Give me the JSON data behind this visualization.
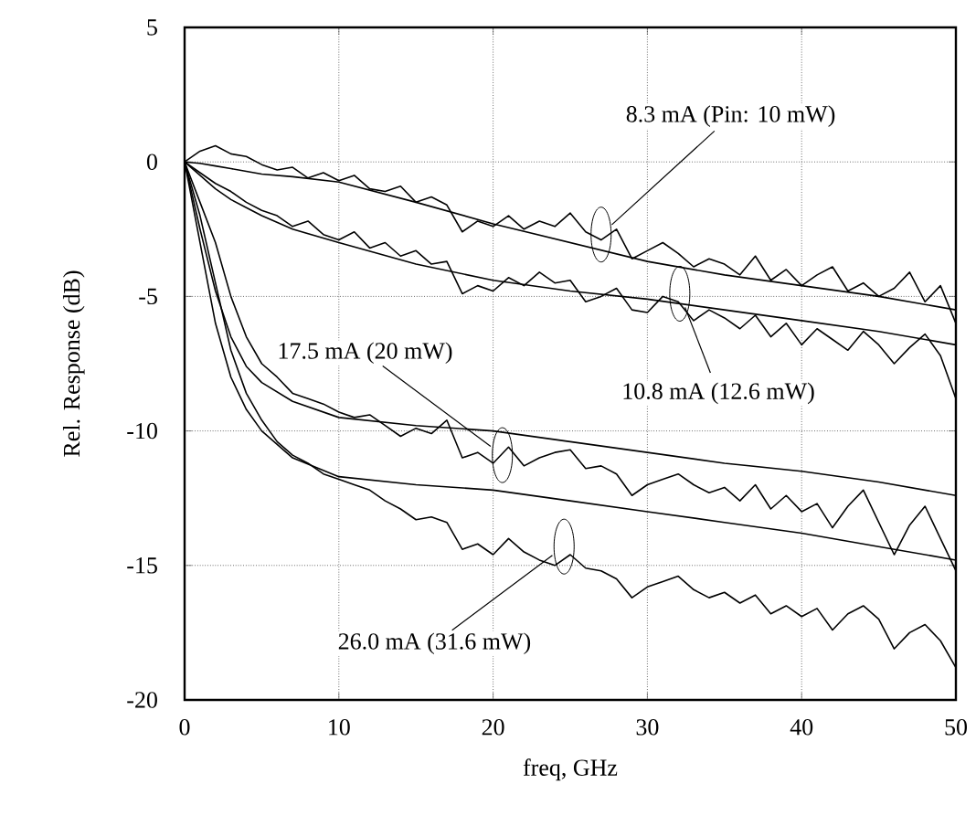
{
  "chart_data": {
    "type": "line",
    "xlabel": "freq, GHz",
    "ylabel": "Rel. Response (dB)",
    "xlim": [
      0,
      50
    ],
    "ylim": [
      -20,
      5
    ],
    "xticks": [
      0,
      10,
      20,
      30,
      40,
      50
    ],
    "yticks": [
      -20,
      -15,
      -10,
      -5,
      0,
      5
    ],
    "grid": true,
    "marker": "none",
    "line_style": "solid",
    "series": [
      {
        "color": "#000000",
        "x": [
          0,
          1,
          2,
          3,
          4,
          5,
          6,
          7,
          8,
          9,
          10,
          11,
          12,
          13,
          14,
          15,
          16,
          17,
          18,
          19,
          20,
          21,
          22,
          23,
          24,
          25,
          26,
          27,
          28,
          29,
          30,
          31,
          32,
          33,
          34,
          35,
          36,
          37,
          38,
          39,
          40,
          41,
          42,
          43,
          44,
          45,
          46,
          47,
          48,
          49,
          50
        ],
        "values": [
          0,
          0.4,
          0.6,
          0.3,
          0.2,
          -0.1,
          -0.3,
          -0.2,
          -0.6,
          -0.4,
          -0.7,
          -0.5,
          -1.0,
          -1.1,
          -0.9,
          -1.5,
          -1.3,
          -1.6,
          -2.6,
          -2.2,
          -2.4,
          -2.0,
          -2.5,
          -2.2,
          -2.4,
          -1.9,
          -2.6,
          -2.9,
          -2.5,
          -3.6,
          -3.3,
          -3.0,
          -3.4,
          -3.9,
          -3.6,
          -3.8,
          -4.2,
          -3.5,
          -4.4,
          -4.0,
          -4.6,
          -4.2,
          -3.9,
          -4.8,
          -4.5,
          -5.0,
          -4.7,
          -4.1,
          -5.2,
          -4.6,
          -6.0
        ]
      },
      {
        "color": "#000000",
        "x": [
          0,
          1,
          2,
          3,
          4,
          5,
          6,
          7,
          8,
          9,
          10,
          11,
          12,
          13,
          14,
          15,
          16,
          17,
          18,
          19,
          20,
          21,
          22,
          23,
          24,
          25,
          26,
          27,
          28,
          29,
          30,
          31,
          32,
          33,
          34,
          35,
          36,
          37,
          38,
          39,
          40,
          41,
          42,
          43,
          44,
          45,
          46,
          47,
          48,
          49,
          50
        ],
        "values": [
          0,
          -0.4,
          -0.8,
          -1.1,
          -1.5,
          -1.8,
          -2.0,
          -2.4,
          -2.2,
          -2.7,
          -2.9,
          -2.6,
          -3.2,
          -3.0,
          -3.5,
          -3.3,
          -3.8,
          -3.7,
          -4.9,
          -4.6,
          -4.8,
          -4.3,
          -4.6,
          -4.1,
          -4.5,
          -4.4,
          -5.2,
          -5.0,
          -4.7,
          -5.5,
          -5.6,
          -5.0,
          -5.2,
          -5.9,
          -5.5,
          -5.8,
          -6.2,
          -5.7,
          -6.5,
          -6.0,
          -6.8,
          -6.2,
          -6.6,
          -7.0,
          -6.3,
          -6.8,
          -7.5,
          -6.9,
          -6.4,
          -7.2,
          -8.8
        ]
      },
      {
        "color": "#000000",
        "x": [
          0,
          1,
          2,
          3,
          4,
          5,
          6,
          7,
          8,
          9,
          10,
          11,
          12,
          13,
          14,
          15,
          16,
          17,
          18,
          19,
          20,
          21,
          22,
          23,
          24,
          25,
          26,
          27,
          28,
          29,
          30,
          31,
          32,
          33,
          34,
          35,
          36,
          37,
          38,
          39,
          40,
          41,
          42,
          43,
          44,
          45,
          46,
          47,
          48,
          49,
          50
        ],
        "values": [
          0,
          -1.5,
          -3.0,
          -5.0,
          -6.5,
          -7.5,
          -8.0,
          -8.6,
          -8.8,
          -9.0,
          -9.3,
          -9.5,
          -9.4,
          -9.8,
          -10.2,
          -9.9,
          -10.1,
          -9.6,
          -11.0,
          -10.8,
          -11.2,
          -10.6,
          -11.3,
          -11.0,
          -10.8,
          -10.7,
          -11.4,
          -11.3,
          -11.6,
          -12.4,
          -12.0,
          -11.8,
          -11.6,
          -12.0,
          -12.3,
          -12.1,
          -12.6,
          -12.0,
          -12.9,
          -12.4,
          -13.0,
          -12.7,
          -13.6,
          -12.8,
          -12.2,
          -13.4,
          -14.6,
          -13.5,
          -12.8,
          -14.0,
          -15.2
        ]
      },
      {
        "color": "#000000",
        "x": [
          0,
          1,
          2,
          3,
          4,
          5,
          6,
          7,
          8,
          9,
          10,
          11,
          12,
          13,
          14,
          15,
          16,
          17,
          18,
          19,
          20,
          21,
          22,
          23,
          24,
          25,
          26,
          27,
          28,
          29,
          30,
          31,
          32,
          33,
          34,
          35,
          36,
          37,
          38,
          39,
          40,
          41,
          42,
          43,
          44,
          45,
          46,
          47,
          48,
          49,
          50
        ],
        "values": [
          0,
          -2.0,
          -4.5,
          -7.0,
          -8.6,
          -9.6,
          -10.4,
          -10.9,
          -11.2,
          -11.6,
          -11.8,
          -12.0,
          -12.2,
          -12.6,
          -12.9,
          -13.3,
          -13.2,
          -13.4,
          -14.4,
          -14.2,
          -14.6,
          -14.0,
          -14.5,
          -14.8,
          -15.0,
          -14.6,
          -15.1,
          -15.2,
          -15.5,
          -16.2,
          -15.8,
          -15.6,
          -15.4,
          -15.9,
          -16.2,
          -16.0,
          -16.4,
          -16.1,
          -16.8,
          -16.5,
          -16.9,
          -16.6,
          -17.4,
          -16.8,
          -16.5,
          -17.0,
          -18.1,
          -17.5,
          -17.2,
          -17.8,
          -18.8
        ]
      },
      {
        "color": "#000000",
        "x": [
          0,
          1,
          2,
          3,
          4,
          5,
          7,
          10,
          15,
          20,
          25,
          30,
          35,
          40,
          45,
          50
        ],
        "values": [
          0,
          -0.05,
          -0.15,
          -0.25,
          -0.35,
          -0.45,
          -0.55,
          -0.75,
          -1.5,
          -2.3,
          -3.0,
          -3.7,
          -4.2,
          -4.6,
          -5.0,
          -5.5
        ]
      },
      {
        "color": "#000000",
        "x": [
          0,
          1,
          2,
          3,
          4,
          5,
          7,
          10,
          15,
          20,
          25,
          30,
          35,
          40,
          45,
          50
        ],
        "values": [
          0,
          -0.5,
          -1.0,
          -1.4,
          -1.7,
          -2.0,
          -2.5,
          -3.0,
          -3.8,
          -4.4,
          -4.8,
          -5.1,
          -5.5,
          -5.9,
          -6.3,
          -6.8
        ]
      },
      {
        "color": "#000000",
        "x": [
          0,
          1,
          2,
          3,
          4,
          5,
          7,
          10,
          15,
          20,
          25,
          30,
          35,
          40,
          45,
          50
        ],
        "values": [
          0,
          -2.5,
          -4.8,
          -6.5,
          -7.6,
          -8.2,
          -8.9,
          -9.5,
          -9.8,
          -10.0,
          -10.4,
          -10.8,
          -11.2,
          -11.5,
          -11.9,
          -12.4
        ]
      },
      {
        "color": "#000000",
        "x": [
          0,
          1,
          2,
          3,
          4,
          5,
          7,
          10,
          15,
          20,
          25,
          30,
          35,
          40,
          45,
          50
        ],
        "values": [
          0,
          -3.0,
          -6.0,
          -8.0,
          -9.2,
          -10.0,
          -11.0,
          -11.7,
          -12.0,
          -12.2,
          -12.6,
          -13.0,
          -13.4,
          -13.8,
          -14.3,
          -14.8
        ]
      }
    ],
    "annotations": [
      {
        "text": "8.3 mA (Pin: 10 mW)",
        "x": 27.0,
        "y": -2.7
      },
      {
        "text": "10.8  mA (12.6 mW)",
        "x": 32.1,
        "y": -4.9
      },
      {
        "text": "17.5  mA (20 mW)",
        "x": 20.6,
        "y": -10.9
      },
      {
        "text": "26.0  mA (31.6 mW)",
        "x": 24.6,
        "y": -14.3
      }
    ]
  }
}
